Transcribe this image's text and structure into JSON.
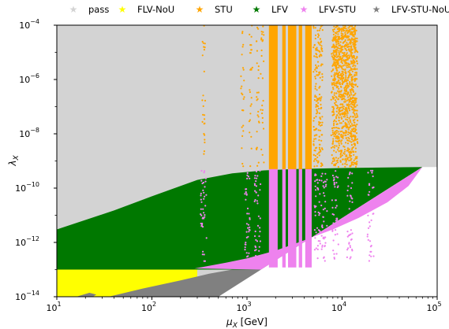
{
  "chart_data": {
    "type": "scatter",
    "xlabel": "μX [GeV]",
    "ylabel": "λX",
    "xlim": [
      10,
      100000
    ],
    "ylim": [
      1e-14,
      0.0001
    ],
    "x_scale": "log",
    "y_scale": "log",
    "x_ticks": [
      {
        "base": "10",
        "exp": "1"
      },
      {
        "base": "10",
        "exp": "2"
      },
      {
        "base": "10",
        "exp": "3"
      },
      {
        "base": "10",
        "exp": "4"
      },
      {
        "base": "10",
        "exp": "5"
      }
    ],
    "y_ticks": [
      {
        "base": "10",
        "exp": "−4"
      },
      {
        "base": "10",
        "exp": "−6"
      },
      {
        "base": "10",
        "exp": "−8"
      },
      {
        "base": "10",
        "exp": "−10"
      },
      {
        "base": "10",
        "exp": "−12"
      },
      {
        "base": "10",
        "exp": "−14"
      }
    ],
    "legend_position": "top",
    "legend": [
      {
        "name": "pass",
        "color": "#d3d3d3"
      },
      {
        "name": "FLV-NoU",
        "color": "#ffff00"
      },
      {
        "name": "STU",
        "color": "#ffa500"
      },
      {
        "name": "LFV",
        "color": "#007800"
      },
      {
        "name": "LFV-STU",
        "color": "#ee82ee"
      },
      {
        "name": "LFV-STU-NoU",
        "color": "#808080"
      }
    ],
    "regions": {
      "pass": {
        "color": "#d3d3d3"
      },
      "lfv_lower_boundary": [
        [
          10,
          3e-12
        ],
        [
          40,
          1.5e-11
        ],
        [
          100,
          5e-11
        ],
        [
          300,
          2e-10
        ],
        [
          700,
          3.5e-10
        ],
        [
          1500,
          4.5e-10
        ],
        [
          3000,
          5e-10
        ],
        [
          10000,
          5.5e-10
        ],
        [
          70000,
          6e-10
        ]
      ],
      "lfv_upper_boundary": [
        [
          10,
          3e-12
        ],
        [
          40,
          1.5e-11
        ],
        [
          100,
          5e-11
        ],
        [
          300,
          2e-10
        ],
        [
          700,
          3.5e-10
        ],
        [
          1500,
          4.5e-10
        ],
        [
          3000,
          5e-10
        ],
        [
          10000,
          5.5e-10
        ],
        [
          70000,
          6e-10
        ]
      ],
      "lfv_floor": 1e-13,
      "triangle_edge": [
        [
          500,
          1e-14
        ],
        [
          70000,
          6e-10
        ]
      ],
      "flv_nou_top": 1e-13,
      "flv_nou_x_end": 300,
      "grey_band_top": 1e-13,
      "grey_band_x_range": [
        35,
        1000
      ],
      "pink_region": [
        [
          300,
          2e-13
        ],
        [
          1000,
          1e-13
        ],
        [
          3000,
          4e-13
        ],
        [
          10000,
          2e-12
        ],
        [
          40000,
          1.2e-11
        ],
        [
          70000,
          6e-10
        ]
      ],
      "stu_band": {
        "x_range": [
          1700,
          4800
        ],
        "color": "#ffa500"
      },
      "stu_pink_band": {
        "x_range": [
          1700,
          4800
        ],
        "y_range": [
          1e-13,
          5e-10
        ]
      },
      "stu_scatter_columns": [
        350,
        900,
        1100,
        1300,
        1450,
        5200,
        5600,
        6000,
        8000,
        9000,
        10000,
        11000,
        12000,
        13000,
        14000
      ]
    }
  }
}
